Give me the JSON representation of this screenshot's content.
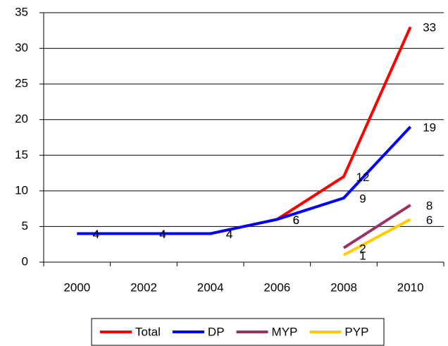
{
  "chart_data": {
    "type": "line",
    "categories": [
      "2000",
      "2002",
      "2004",
      "2006",
      "2008",
      "2010"
    ],
    "series": [
      {
        "name": "Total",
        "color": "#ff0000",
        "values": [
          4,
          4,
          4,
          6,
          12,
          33
        ]
      },
      {
        "name": "DP",
        "color": "#0000ff",
        "values": [
          4,
          4,
          4,
          6,
          9,
          19
        ]
      },
      {
        "name": "MYP",
        "color": "#993366",
        "values": [
          null,
          null,
          null,
          null,
          2,
          8
        ]
      },
      {
        "name": "PYP",
        "color": "#ffcc00",
        "values": [
          null,
          null,
          null,
          null,
          1,
          6
        ]
      }
    ],
    "ylim": [
      0,
      35
    ],
    "yticks": [
      0,
      5,
      10,
      15,
      20,
      25,
      30,
      35
    ],
    "grid": true,
    "legend": "bottom"
  }
}
